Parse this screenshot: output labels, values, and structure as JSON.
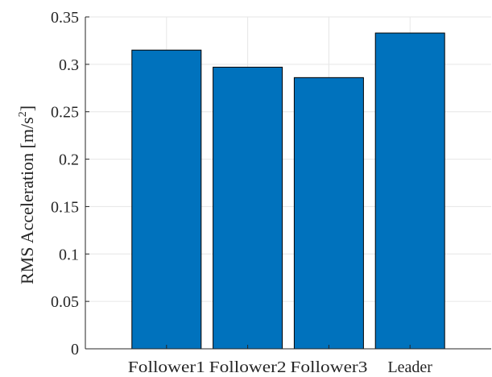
{
  "chart_data": {
    "type": "bar",
    "title": "",
    "xlabel": "",
    "ylabel": "RMS Acceleration [m/s",
    "ylabel_superscript": "2",
    "ylabel_suffix": "]",
    "categories": [
      "Follower1",
      "Follower2",
      "Follower3",
      "Leader"
    ],
    "values": [
      0.315,
      0.297,
      0.286,
      0.333
    ],
    "ylim": [
      0,
      0.35
    ],
    "yticks": [
      0,
      0.05,
      0.1,
      0.15,
      0.2,
      0.25,
      0.3,
      0.35
    ],
    "ytick_labels": [
      "0",
      "0.05",
      "0.1",
      "0.15",
      "0.2",
      "0.25",
      "0.3",
      "0.35"
    ],
    "grid": true,
    "bar_color": "#0072BD",
    "bar_edge_color": "#000000"
  }
}
